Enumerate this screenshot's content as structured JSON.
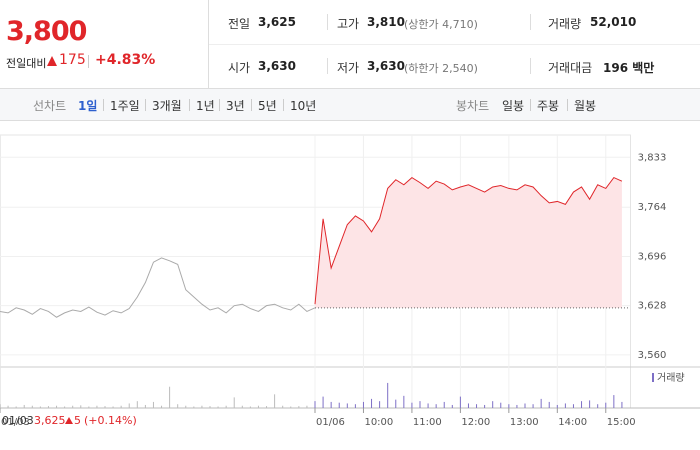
{
  "quote": {
    "price": "3,800",
    "change_label": "전일대비",
    "change": "175",
    "change_rate": "+4.83%"
  },
  "stats": [
    [
      {
        "label": "전일",
        "value": "3,625"
      },
      {
        "label": "고가",
        "value": "3,810",
        "note": "(상한가 4,710)"
      },
      {
        "label": "거래량",
        "value": "52,010"
      }
    ],
    [
      {
        "label": "시가",
        "value": "3,630"
      },
      {
        "label": "저가",
        "value": "3,630",
        "note": "(하한가 2,540)"
      },
      {
        "label": "거래대금",
        "value": "196 백만"
      }
    ]
  ],
  "tabs": {
    "line_label": "선차트",
    "line_tabs": [
      "1일",
      "1주일",
      "3개월",
      "1년",
      "3년",
      "5년",
      "10년"
    ],
    "candle_label": "봉차트",
    "candle_tabs": [
      "일봉",
      "주봉",
      "월봉"
    ]
  },
  "footer": {
    "date": "01/03",
    "close": "3,625",
    "change": "5",
    "rate": "(+0.14%)"
  },
  "chart_data": {
    "type": "line",
    "xlim": [
      0,
      780
    ],
    "xticks": [
      {
        "value": 0,
        "label": "01/03"
      },
      {
        "value": 390,
        "label": "01/06"
      },
      {
        "value": 450,
        "label": "10:00"
      },
      {
        "value": 510,
        "label": "11:00"
      },
      {
        "value": 570,
        "label": "12:00"
      },
      {
        "value": 630,
        "label": "13:00"
      },
      {
        "value": 690,
        "label": "14:00"
      },
      {
        "value": 750,
        "label": "15:00"
      }
    ],
    "ylim": [
      3546,
      3850
    ],
    "yticks": [
      {
        "value": 3560,
        "label": "3,560"
      },
      {
        "value": 3628,
        "label": "3,628"
      },
      {
        "value": 3696,
        "label": "3,696"
      },
      {
        "value": 3764,
        "label": "3,764"
      },
      {
        "value": 3833,
        "label": "3,833"
      }
    ],
    "grid": true,
    "reference_line": 3625,
    "volume_legend": "거래량",
    "volume_color": "#7d6fc6",
    "vlim": [
      0,
      5000
    ],
    "series": [
      {
        "color": "#aaaaaa",
        "fill": null,
        "x": [
          0,
          10,
          20,
          30,
          40,
          50,
          60,
          70,
          80,
          90,
          100,
          110,
          120,
          130,
          140,
          150,
          160,
          170,
          180,
          190,
          200,
          210,
          220,
          230,
          240,
          250,
          260,
          270,
          280,
          290,
          300,
          310,
          320,
          330,
          340,
          350,
          360,
          370,
          380,
          390
        ],
        "values": [
          3620,
          3618,
          3625,
          3622,
          3616,
          3624,
          3620,
          3612,
          3618,
          3622,
          3620,
          3626,
          3619,
          3615,
          3621,
          3618,
          3624,
          3640,
          3660,
          3688,
          3694,
          3690,
          3685,
          3650,
          3640,
          3630,
          3622,
          3625,
          3618,
          3628,
          3630,
          3624,
          3620,
          3628,
          3630,
          3625,
          3622,
          3630,
          3620,
          3625
        ],
        "volume": [
          500,
          300,
          200,
          400,
          300,
          200,
          250,
          300,
          200,
          300,
          350,
          200,
          300,
          250,
          200,
          300,
          600,
          900,
          400,
          800,
          300,
          2800,
          500,
          300,
          200,
          300,
          250,
          200,
          300,
          1400,
          300,
          200,
          300,
          250,
          1800,
          300,
          200,
          250,
          300,
          400
        ]
      },
      {
        "color": "#e0262a",
        "fill": "#fde4e6",
        "x": [
          390,
          400,
          410,
          420,
          430,
          440,
          450,
          460,
          470,
          480,
          490,
          500,
          510,
          520,
          530,
          540,
          550,
          560,
          570,
          580,
          590,
          600,
          610,
          620,
          630,
          640,
          650,
          660,
          670,
          680,
          690,
          700,
          710,
          720,
          730,
          740,
          750,
          760,
          770
        ],
        "values": [
          3630,
          3748,
          3680,
          3710,
          3740,
          3752,
          3745,
          3730,
          3748,
          3790,
          3802,
          3795,
          3805,
          3798,
          3790,
          3800,
          3796,
          3788,
          3792,
          3795,
          3790,
          3785,
          3792,
          3794,
          3790,
          3788,
          3795,
          3792,
          3780,
          3770,
          3772,
          3768,
          3785,
          3792,
          3775,
          3795,
          3790,
          3805,
          3800
        ],
        "volume": [
          900,
          1500,
          800,
          700,
          600,
          500,
          800,
          1200,
          900,
          3300,
          1100,
          1600,
          700,
          900,
          600,
          500,
          800,
          400,
          1500,
          600,
          500,
          400,
          900,
          700,
          500,
          400,
          600,
          500,
          1200,
          800,
          400,
          600,
          500,
          900,
          1000,
          500,
          700,
          1700,
          800
        ]
      }
    ]
  }
}
